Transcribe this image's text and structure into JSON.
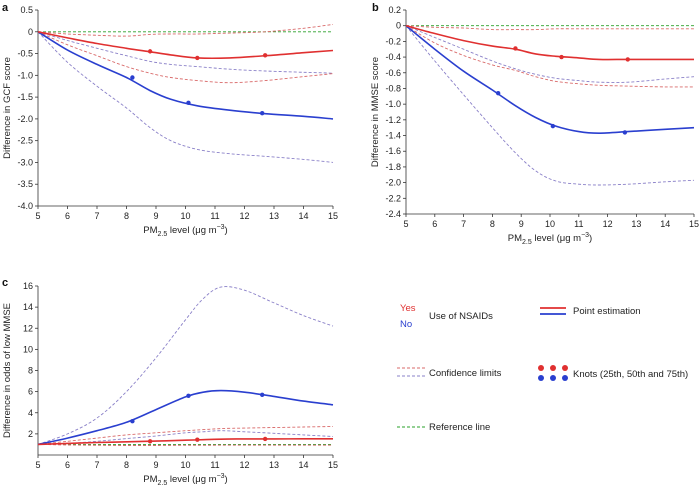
{
  "legend": {
    "yes_label": "Yes",
    "no_label": "No",
    "nsaid_label": "Use of NSAIDs",
    "point_label": "Point estimation",
    "confidence_label": "Confidence limits",
    "knots_label": "Knots (25th, 50th and 75th)",
    "reference_label": "Reference line"
  },
  "colors": {
    "yes": "#e03030",
    "no": "#2a3fcf",
    "reference": "#2aa02a",
    "yes_ci": "#d96a6a",
    "no_ci": "#8a80c8"
  },
  "chart_data": [
    {
      "panel_label": "a",
      "type": "line",
      "xlabel": "PM",
      "xlabel_sub": "2.5",
      "xlabel_rest": " level (μg m",
      "xlabel_sup": "−3",
      "xlabel_end": ")",
      "ylabel": "Difference in GCF score",
      "xlim": [
        5,
        15
      ],
      "ylim": [
        -4.0,
        0.5
      ],
      "xticks": [
        "5",
        "6",
        "7",
        "8",
        "9",
        "10",
        "11",
        "12",
        "13",
        "14",
        "15"
      ],
      "yticks": [
        "0.5",
        "0",
        "-0.5",
        "-1.0",
        "-1.5",
        "-2.0",
        "-2.5",
        "-3.0",
        "-3.5",
        "-4.0"
      ],
      "reference": 0,
      "x": [
        5,
        6,
        7,
        8,
        8.8,
        9.5,
        10.4,
        11.5,
        12.7,
        14,
        15
      ],
      "series": [
        {
          "name": "No",
          "role": "point",
          "values": [
            0,
            -0.42,
            -0.75,
            -1.05,
            -1.35,
            -1.55,
            -1.7,
            -1.8,
            -1.88,
            -1.94,
            -2.0
          ]
        },
        {
          "name": "No",
          "role": "upper",
          "values": [
            0,
            -0.2,
            -0.38,
            -0.55,
            -0.68,
            -0.75,
            -0.8,
            -0.86,
            -0.9,
            -0.93,
            -0.95
          ]
        },
        {
          "name": "No",
          "role": "lower",
          "values": [
            0,
            -0.7,
            -1.25,
            -1.75,
            -2.2,
            -2.5,
            -2.7,
            -2.8,
            -2.86,
            -2.93,
            -3.0
          ]
        },
        {
          "name": "Yes",
          "role": "point",
          "values": [
            0,
            -0.14,
            -0.27,
            -0.38,
            -0.46,
            -0.53,
            -0.6,
            -0.6,
            -0.55,
            -0.48,
            -0.43
          ]
        },
        {
          "name": "Yes",
          "role": "upper",
          "values": [
            0,
            -0.05,
            -0.08,
            -0.1,
            -0.06,
            -0.05,
            -0.05,
            -0.03,
            0.0,
            0.08,
            0.17
          ]
        },
        {
          "name": "Yes",
          "role": "lower",
          "values": [
            0,
            -0.3,
            -0.55,
            -0.8,
            -0.95,
            -1.05,
            -1.12,
            -1.17,
            -1.12,
            -1.03,
            -0.96
          ]
        }
      ],
      "knots": [
        {
          "name": "No",
          "x": [
            8.2,
            10.1,
            12.6
          ],
          "y": [
            -1.05,
            -1.63,
            -1.87
          ]
        },
        {
          "name": "Yes",
          "x": [
            8.8,
            10.4,
            12.7
          ],
          "y": [
            -0.45,
            -0.6,
            -0.54
          ]
        }
      ]
    },
    {
      "panel_label": "b",
      "type": "line",
      "xlabel": "PM",
      "xlabel_sub": "2.5",
      "xlabel_rest": " level (μg m",
      "xlabel_sup": "−3",
      "xlabel_end": ")",
      "ylabel": "Difference in MMSE score",
      "xlim": [
        5,
        15
      ],
      "ylim": [
        -2.4,
        0.2
      ],
      "xticks": [
        "5",
        "6",
        "7",
        "8",
        "9",
        "10",
        "11",
        "12",
        "13",
        "14",
        "15"
      ],
      "yticks": [
        "0.2",
        "0",
        "-0.2",
        "-0.4",
        "-0.6",
        "-0.8",
        "-1.0",
        "-1.2",
        "-1.4",
        "-1.6",
        "-1.8",
        "-2.0",
        "-2.2",
        "-2.4"
      ],
      "reference": 0,
      "x": [
        5,
        6,
        7,
        8,
        8.8,
        9.5,
        10.2,
        11,
        11.7,
        12.7,
        14,
        15
      ],
      "series": [
        {
          "name": "No",
          "role": "point",
          "values": [
            0,
            -0.3,
            -0.58,
            -0.82,
            -1.02,
            -1.17,
            -1.28,
            -1.35,
            -1.37,
            -1.35,
            -1.32,
            -1.3
          ]
        },
        {
          "name": "No",
          "role": "upper",
          "values": [
            0,
            -0.15,
            -0.3,
            -0.45,
            -0.55,
            -0.62,
            -0.67,
            -0.7,
            -0.72,
            -0.72,
            -0.68,
            -0.65
          ]
        },
        {
          "name": "No",
          "role": "lower",
          "values": [
            0,
            -0.45,
            -0.88,
            -1.3,
            -1.62,
            -1.85,
            -1.98,
            -2.02,
            -2.03,
            -2.02,
            -1.99,
            -1.97
          ]
        },
        {
          "name": "Yes",
          "role": "point",
          "values": [
            0,
            -0.1,
            -0.19,
            -0.26,
            -0.3,
            -0.36,
            -0.39,
            -0.41,
            -0.43,
            -0.43,
            -0.43,
            -0.43
          ]
        },
        {
          "name": "Yes",
          "role": "upper",
          "values": [
            0,
            -0.02,
            -0.03,
            -0.05,
            -0.05,
            -0.05,
            -0.04,
            -0.04,
            -0.04,
            -0.04,
            -0.04,
            -0.04
          ]
        },
        {
          "name": "Yes",
          "role": "lower",
          "values": [
            0,
            -0.22,
            -0.38,
            -0.5,
            -0.57,
            -0.65,
            -0.71,
            -0.74,
            -0.76,
            -0.77,
            -0.78,
            -0.78
          ]
        }
      ],
      "knots": [
        {
          "name": "No",
          "x": [
            8.2,
            10.1,
            12.6
          ],
          "y": [
            -0.86,
            -1.28,
            -1.36
          ]
        },
        {
          "name": "Yes",
          "x": [
            8.8,
            10.4,
            12.7
          ],
          "y": [
            -0.29,
            -0.4,
            -0.43
          ]
        }
      ]
    },
    {
      "panel_label": "c",
      "type": "line",
      "xlabel": "PM",
      "xlabel_sub": "2.5",
      "xlabel_rest": " level (μg m",
      "xlabel_sup": "−3",
      "xlabel_end": ")",
      "ylabel": "Difference in odds of low MMSE",
      "xlim": [
        5,
        15
      ],
      "ylim": [
        0,
        16
      ],
      "xticks": [
        "5",
        "6",
        "7",
        "8",
        "9",
        "10",
        "11",
        "12",
        "13",
        "14",
        "15"
      ],
      "yticks": [
        "16",
        "14",
        "12",
        "10",
        "8",
        "6",
        "4",
        "2"
      ],
      "reference": 1,
      "x": [
        5,
        6,
        7,
        8,
        9,
        10,
        10.6,
        11.2,
        12,
        13,
        14,
        15
      ],
      "series": [
        {
          "name": "No",
          "role": "point",
          "values": [
            1,
            1.6,
            2.3,
            3.1,
            4.3,
            5.5,
            5.95,
            6.1,
            5.95,
            5.55,
            5.1,
            4.75
          ]
        },
        {
          "name": "No",
          "role": "upper",
          "values": [
            1,
            2.0,
            3.5,
            6.0,
            9.2,
            12.8,
            14.8,
            15.9,
            15.6,
            14.4,
            13.2,
            12.2
          ]
        },
        {
          "name": "No",
          "role": "lower",
          "values": [
            1,
            1.1,
            1.3,
            1.55,
            1.8,
            2.1,
            2.2,
            2.3,
            2.2,
            2.05,
            1.9,
            1.75
          ]
        },
        {
          "name": "Yes",
          "role": "point",
          "values": [
            1,
            1.1,
            1.18,
            1.25,
            1.32,
            1.4,
            1.45,
            1.5,
            1.52,
            1.52,
            1.53,
            1.53
          ]
        },
        {
          "name": "Yes",
          "role": "upper",
          "values": [
            1,
            1.3,
            1.6,
            1.9,
            2.1,
            2.3,
            2.4,
            2.5,
            2.55,
            2.6,
            2.65,
            2.7
          ]
        },
        {
          "name": "Yes",
          "role": "lower",
          "values": [
            1,
            0.95,
            0.92,
            0.9,
            0.9,
            0.92,
            0.92,
            0.93,
            0.93,
            0.93,
            0.93,
            0.93
          ]
        }
      ],
      "knots": [
        {
          "name": "No",
          "x": [
            8.2,
            10.1,
            12.6
          ],
          "y": [
            3.2,
            5.6,
            5.7
          ]
        },
        {
          "name": "Yes",
          "x": [
            8.8,
            10.4,
            12.7
          ],
          "y": [
            1.3,
            1.45,
            1.52
          ]
        }
      ]
    }
  ]
}
